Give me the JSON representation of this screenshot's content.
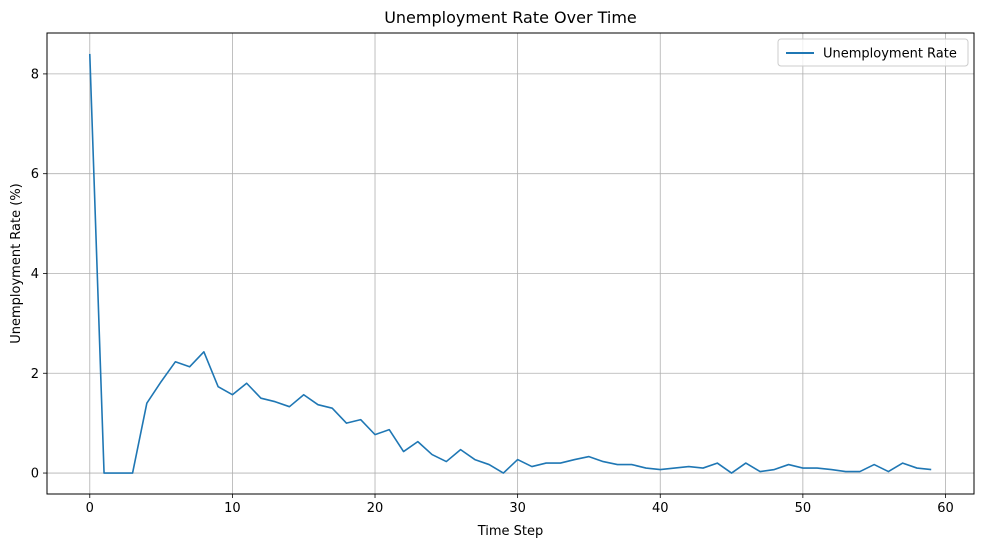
{
  "chart_data": {
    "type": "line",
    "title": "Unemployment Rate Over Time",
    "xlabel": "Time Step",
    "ylabel": "Unemployment Rate (%)",
    "xlim": [
      -3,
      62
    ],
    "ylim": [
      -0.42,
      8.82
    ],
    "xticks": [
      0,
      10,
      20,
      30,
      40,
      50,
      60
    ],
    "yticks": [
      0,
      2,
      4,
      6,
      8
    ],
    "grid": true,
    "legend_position": "top-right",
    "series": [
      {
        "name": "Unemployment Rate",
        "color": "#1f77b4",
        "x": [
          0,
          1,
          2,
          3,
          4,
          5,
          6,
          7,
          8,
          9,
          10,
          11,
          12,
          13,
          14,
          15,
          16,
          17,
          18,
          19,
          20,
          21,
          22,
          23,
          24,
          25,
          26,
          27,
          28,
          29,
          30,
          31,
          32,
          33,
          34,
          35,
          36,
          37,
          38,
          39,
          40,
          41,
          42,
          43,
          44,
          45,
          46,
          47,
          48,
          49,
          50,
          51,
          52,
          53,
          54,
          55,
          56,
          57,
          58,
          59
        ],
        "values": [
          8.4,
          0.0,
          0.0,
          0.0,
          1.4,
          1.83,
          2.23,
          2.13,
          2.43,
          1.73,
          1.57,
          1.8,
          1.5,
          1.43,
          1.33,
          1.57,
          1.37,
          1.3,
          1.0,
          1.07,
          0.77,
          0.87,
          0.43,
          0.63,
          0.37,
          0.23,
          0.47,
          0.27,
          0.17,
          0.0,
          0.27,
          0.13,
          0.2,
          0.2,
          0.27,
          0.33,
          0.23,
          0.17,
          0.17,
          0.1,
          0.07,
          0.1,
          0.13,
          0.1,
          0.2,
          0.0,
          0.2,
          0.03,
          0.07,
          0.17,
          0.1,
          0.1,
          0.07,
          0.03,
          0.03,
          0.17,
          0.03,
          0.2,
          0.1,
          0.07
        ]
      }
    ]
  }
}
